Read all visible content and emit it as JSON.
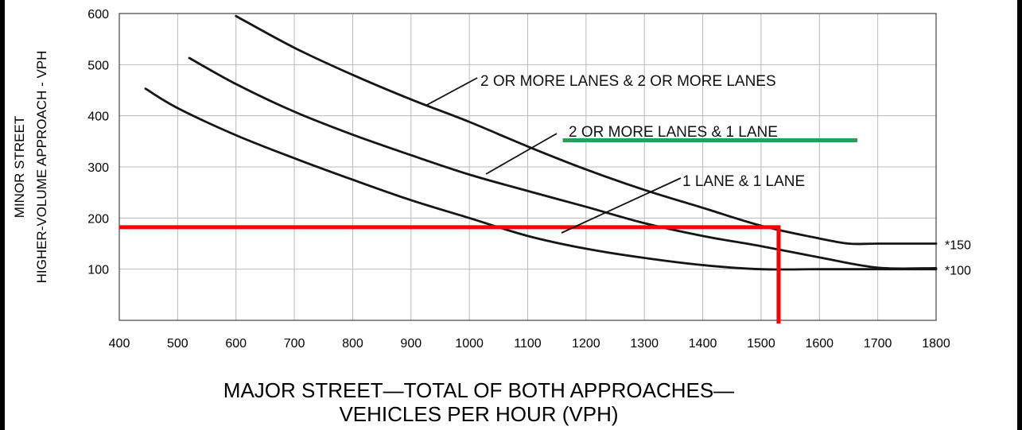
{
  "chart_data": {
    "type": "line",
    "x_ticks": [
      400,
      500,
      600,
      700,
      800,
      900,
      1000,
      1100,
      1200,
      1300,
      1400,
      1500,
      1600,
      1700,
      1800
    ],
    "y_ticks": [
      100,
      200,
      300,
      400,
      500,
      600
    ],
    "xlim": [
      400,
      1800
    ],
    "ylim": [
      0,
      600
    ],
    "grid": true,
    "xlabel_lines": [
      "MAJOR STREET—TOTAL OF BOTH APPROACHES—",
      "VEHICLES PER HOUR (VPH)"
    ],
    "ylabel_lines": [
      "MINOR STREET",
      "HIGHER-VOLUME APPROACH - VPH"
    ],
    "series": [
      {
        "name": "2 OR MORE LANES & 2 OR MORE LANES",
        "x": [
          600,
          700,
          800,
          900,
          1000,
          1100,
          1200,
          1300,
          1400,
          1500,
          1600,
          1650,
          1700,
          1800
        ],
        "y": [
          595,
          533,
          480,
          432,
          388,
          340,
          295,
          255,
          220,
          185,
          160,
          150,
          150,
          150
        ]
      },
      {
        "name": "2 OR MORE LANES & 1 LANE",
        "x": [
          520,
          600,
          700,
          800,
          900,
          1000,
          1100,
          1200,
          1300,
          1400,
          1500,
          1600,
          1700,
          1800
        ],
        "y": [
          513,
          462,
          408,
          363,
          323,
          285,
          253,
          222,
          190,
          165,
          145,
          123,
          103,
          102
        ]
      },
      {
        "name": "1 LANE & 1 LANE",
        "x": [
          445,
          500,
          600,
          700,
          800,
          900,
          1000,
          1100,
          1200,
          1300,
          1400,
          1500,
          1600,
          1700,
          1800
        ],
        "y": [
          453,
          415,
          362,
          317,
          275,
          235,
          200,
          165,
          140,
          122,
          108,
          100,
          100,
          100,
          100
        ]
      }
    ],
    "floor_annotations": [
      {
        "label": "*150",
        "y": 150
      },
      {
        "label": "*100",
        "y": 100
      }
    ],
    "overlays": {
      "red_horizontal": {
        "x0": 400,
        "x1": 1530,
        "y": 182,
        "color": "#ff0000"
      },
      "red_vertical": {
        "x": 1530,
        "y0": 0,
        "y1": 182,
        "color": "#ff0000"
      },
      "green_underline": {
        "x0": 1160,
        "x1": 1665,
        "y": 352,
        "color": "#2e9b5b"
      }
    }
  }
}
